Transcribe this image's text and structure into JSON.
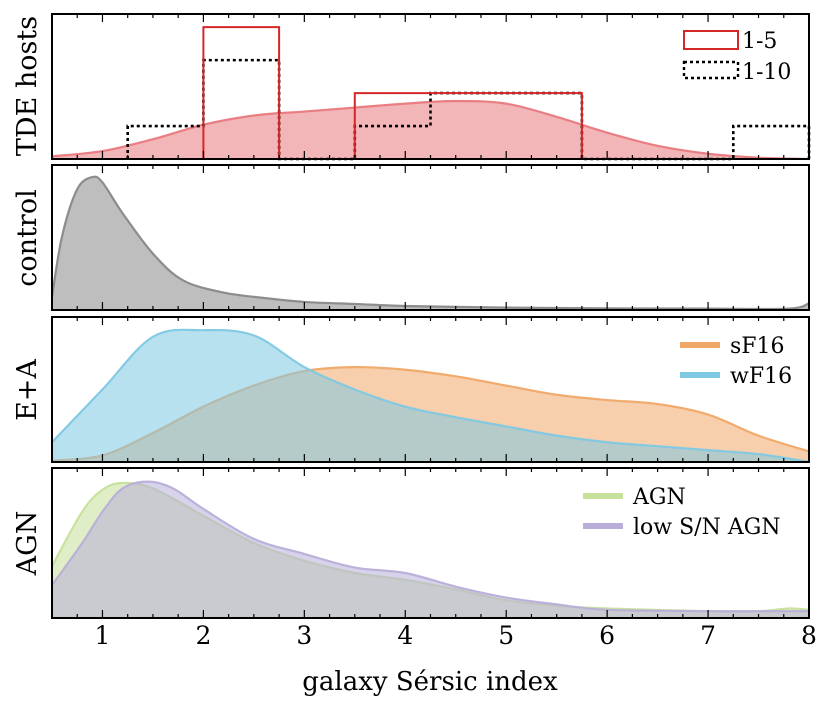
{
  "chart_data": [
    {
      "type": "area",
      "panel": "TDE hosts",
      "ylabel": "TDE hosts",
      "xlim": [
        0.5,
        8
      ],
      "ylim": [
        0,
        1.1
      ],
      "colors": {
        "kde": "#e8797d",
        "hist_1_5": "#d62728",
        "hist_1_10": "#000000"
      },
      "kde": {
        "x": [
          0.5,
          1.0,
          1.5,
          2.0,
          2.5,
          3.0,
          3.5,
          4.0,
          4.5,
          5.0,
          5.5,
          6.0,
          6.5,
          7.0,
          7.5,
          8.0
        ],
        "y": [
          0.02,
          0.06,
          0.15,
          0.26,
          0.33,
          0.36,
          0.39,
          0.42,
          0.44,
          0.42,
          0.32,
          0.2,
          0.1,
          0.04,
          0.01,
          0.0
        ]
      },
      "hist_1_5": {
        "edges": [
          2.0,
          2.75,
          3.5,
          5.75
        ],
        "heights": [
          1.0,
          0.0,
          0.5
        ]
      },
      "hist_1_10": {
        "edges": [
          1.25,
          2.0,
          2.75,
          3.5,
          4.25,
          5.75,
          7.25,
          8.0
        ],
        "heights": [
          0.25,
          0.75,
          0.0,
          0.25,
          0.5,
          0.0,
          0.25
        ]
      },
      "legend": [
        "1-5",
        "1-10"
      ]
    },
    {
      "type": "area",
      "panel": "control",
      "ylabel": "control",
      "xlim": [
        0.5,
        8
      ],
      "ylim": [
        0,
        1.08
      ],
      "colors": {
        "kde": "#888888"
      },
      "kde": {
        "x": [
          0.5,
          0.6,
          0.75,
          0.9,
          1.0,
          1.2,
          1.5,
          1.8,
          2.2,
          2.6,
          3.0,
          3.5,
          4.0,
          5.0,
          6.0,
          7.0,
          7.8,
          8.0
        ],
        "y": [
          0.1,
          0.55,
          0.9,
          0.99,
          0.95,
          0.72,
          0.42,
          0.22,
          0.13,
          0.09,
          0.06,
          0.045,
          0.03,
          0.018,
          0.012,
          0.01,
          0.01,
          0.05
        ]
      }
    },
    {
      "type": "area",
      "panel": "E+A",
      "ylabel": "E+A",
      "xlim": [
        0.5,
        8
      ],
      "ylim": [
        0,
        1.1
      ],
      "colors": {
        "sF16": "#f0a868",
        "wF16": "#7ec8e3"
      },
      "series": [
        {
          "name": "sF16",
          "x": [
            0.5,
            1.0,
            1.5,
            2.0,
            2.5,
            3.0,
            3.5,
            4.0,
            4.5,
            5.0,
            5.5,
            6.0,
            6.5,
            7.0,
            7.5,
            8.0
          ],
          "y": [
            0.01,
            0.05,
            0.22,
            0.42,
            0.58,
            0.69,
            0.72,
            0.7,
            0.65,
            0.58,
            0.51,
            0.47,
            0.44,
            0.36,
            0.2,
            0.08
          ]
        },
        {
          "name": "wF16",
          "x": [
            0.5,
            1.0,
            1.5,
            2.0,
            2.5,
            3.0,
            3.5,
            4.0,
            4.5,
            5.0,
            5.5,
            6.0,
            6.5,
            7.0,
            7.5,
            8.0
          ],
          "y": [
            0.15,
            0.55,
            0.95,
            1.0,
            0.96,
            0.72,
            0.55,
            0.42,
            0.34,
            0.27,
            0.2,
            0.15,
            0.12,
            0.09,
            0.06,
            0.0
          ]
        }
      ],
      "legend": [
        "sF16",
        "wF16"
      ]
    },
    {
      "type": "area",
      "panel": "AGN",
      "ylabel": "AGN",
      "xlim": [
        0.5,
        8
      ],
      "ylim": [
        0,
        1.1
      ],
      "colors": {
        "AGN": "#c7e09b",
        "low S/N AGN": "#b8aed8"
      },
      "series": [
        {
          "name": "AGN",
          "x": [
            0.5,
            0.8,
            1.0,
            1.2,
            1.5,
            2.0,
            2.5,
            3.0,
            3.5,
            4.0,
            4.5,
            5.0,
            5.5,
            6.0,
            7.0,
            7.5,
            7.8,
            8.0
          ],
          "y": [
            0.38,
            0.78,
            0.94,
            0.99,
            0.95,
            0.75,
            0.55,
            0.42,
            0.33,
            0.28,
            0.21,
            0.13,
            0.09,
            0.07,
            0.05,
            0.05,
            0.07,
            0.06
          ]
        },
        {
          "name": "low S/N AGN",
          "x": [
            0.5,
            0.8,
            1.0,
            1.2,
            1.45,
            1.7,
            2.0,
            2.5,
            3.0,
            3.5,
            4.0,
            4.5,
            5.0,
            5.5,
            6.0,
            7.0,
            7.5,
            8.0
          ],
          "y": [
            0.24,
            0.55,
            0.78,
            0.95,
            1.0,
            0.95,
            0.8,
            0.58,
            0.47,
            0.37,
            0.33,
            0.23,
            0.15,
            0.1,
            0.06,
            0.05,
            0.05,
            0.05
          ]
        }
      ],
      "legend": [
        "AGN",
        "low S/N AGN"
      ]
    }
  ],
  "axes": {
    "xlabel": "galaxy Sérsic index",
    "xticks": [
      1,
      2,
      3,
      4,
      5,
      6,
      7,
      8
    ],
    "xtick_labels": [
      "1",
      "2",
      "3",
      "4",
      "5",
      "6",
      "7",
      "8"
    ]
  }
}
